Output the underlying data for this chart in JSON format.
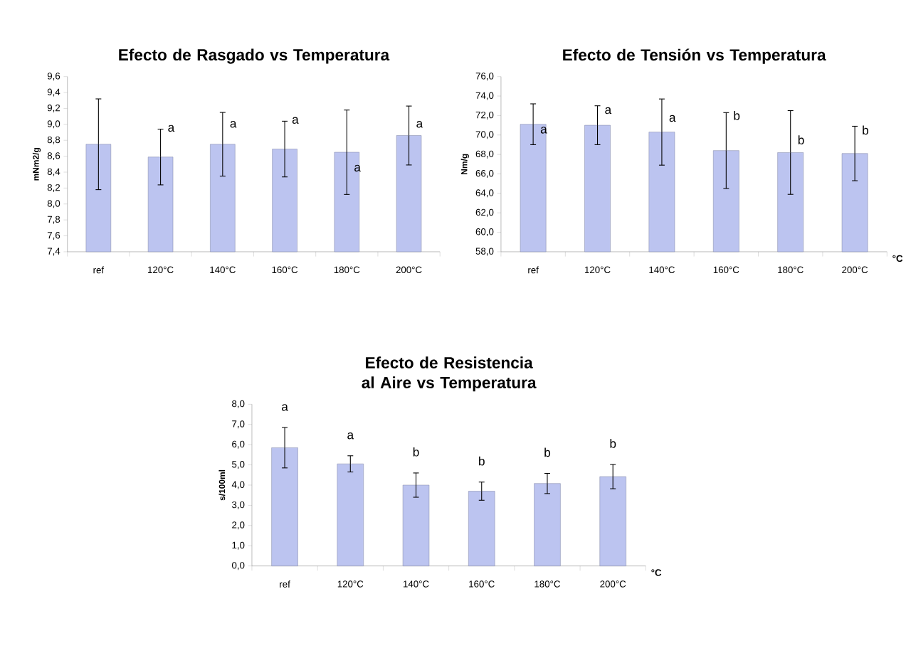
{
  "chart_data": [
    {
      "type": "bar",
      "title": "Efecto de Rasgado vs Temperatura",
      "ylabel": "mNm2/g",
      "categories": [
        "ref",
        "120°C",
        "140°C",
        "160°C",
        "180°C",
        "200°C"
      ],
      "values": [
        8.75,
        8.59,
        8.75,
        8.69,
        8.65,
        8.86
      ],
      "errors": [
        0.57,
        0.35,
        0.4,
        0.35,
        0.53,
        0.37
      ],
      "color": "#bcc4f0",
      "ylim": [
        7.4,
        9.6
      ],
      "yticks": [
        {
          "value": 7.4,
          "label": "7,4"
        },
        {
          "value": 7.6,
          "label": "7,6"
        },
        {
          "value": 7.8,
          "label": "7,8"
        },
        {
          "value": 8.0,
          "label": "8,0"
        },
        {
          "value": 8.2,
          "label": "8,2"
        },
        {
          "value": 8.4,
          "label": "8,4"
        },
        {
          "value": 8.6,
          "label": "8,6"
        },
        {
          "value": 8.8,
          "label": "8,8"
        },
        {
          "value": 9.0,
          "label": "9,0"
        },
        {
          "value": 9.2,
          "label": "9,2"
        },
        {
          "value": 9.4,
          "label": "9,4"
        },
        {
          "value": 9.6,
          "label": "9,6"
        }
      ],
      "annotations": [
        {
          "text": "a",
          "x": "120°C",
          "y": 8.95
        },
        {
          "text": "a",
          "x": "140°C",
          "y": 9.0
        },
        {
          "text": "a",
          "x": "160°C",
          "y": 9.05
        },
        {
          "text": "a",
          "x": "180°C",
          "y": 8.45
        },
        {
          "text": "a",
          "x": "200°C",
          "y": 9.0
        }
      ]
    },
    {
      "type": "bar",
      "title": "Efecto de Tensión vs Temperatura",
      "ylabel": "Nm/g",
      "xlabel": "°C",
      "categories": [
        "ref",
        "120°C",
        "140°C",
        "160°C",
        "180°C",
        "200°C"
      ],
      "values": [
        71.1,
        71.0,
        70.3,
        68.4,
        68.2,
        68.1
      ],
      "errors": [
        2.1,
        2.0,
        3.4,
        3.9,
        4.3,
        2.8
      ],
      "color": "#bcc4f0",
      "ylim": [
        58,
        76
      ],
      "yticks": [
        {
          "value": 58,
          "label": "58,0"
        },
        {
          "value": 60,
          "label": "60,0"
        },
        {
          "value": 62,
          "label": "62,0"
        },
        {
          "value": 64,
          "label": "64,0"
        },
        {
          "value": 66,
          "label": "66,0"
        },
        {
          "value": 68,
          "label": "68,0"
        },
        {
          "value": 70,
          "label": "70,0"
        },
        {
          "value": 72,
          "label": "72,0"
        },
        {
          "value": 74,
          "label": "74,0"
        },
        {
          "value": 76,
          "label": "76,0"
        }
      ],
      "annotations": [
        {
          "text": "a",
          "x": "ref",
          "y": 70.5
        },
        {
          "text": "a",
          "x": "120°C",
          "y": 72.5
        },
        {
          "text": "a",
          "x": "140°C",
          "y": 71.7
        },
        {
          "text": "b",
          "x": "160°C",
          "y": 72.0
        },
        {
          "text": "b",
          "x": "180°C",
          "y": 69.5
        },
        {
          "text": "b",
          "x": "200°C",
          "y": 70.5
        }
      ]
    },
    {
      "type": "bar",
      "title": "Efecto de Resistencia al Aire vs Temperatura",
      "ylabel": "s/100ml",
      "xlabel": "°C",
      "categories": [
        "ref",
        "120°C",
        "140°C",
        "160°C",
        "180°C",
        "200°C"
      ],
      "values": [
        5.85,
        5.05,
        4.0,
        3.7,
        4.08,
        4.42
      ],
      "errors": [
        1.0,
        0.4,
        0.6,
        0.45,
        0.5,
        0.6
      ],
      "color": "#bcc4f0",
      "ylim": [
        0,
        8
      ],
      "yticks": [
        {
          "value": 0,
          "label": "0,0"
        },
        {
          "value": 1,
          "label": "1,0"
        },
        {
          "value": 2,
          "label": "2,0"
        },
        {
          "value": 3,
          "label": "3,0"
        },
        {
          "value": 4,
          "label": "4,0"
        },
        {
          "value": 5,
          "label": "5,0"
        },
        {
          "value": 6,
          "label": "6,0"
        },
        {
          "value": 7,
          "label": "7,0"
        },
        {
          "value": 8,
          "label": "8,0"
        }
      ],
      "annotations": [
        "a",
        "a",
        "b",
        "b",
        "b",
        "b"
      ]
    }
  ]
}
